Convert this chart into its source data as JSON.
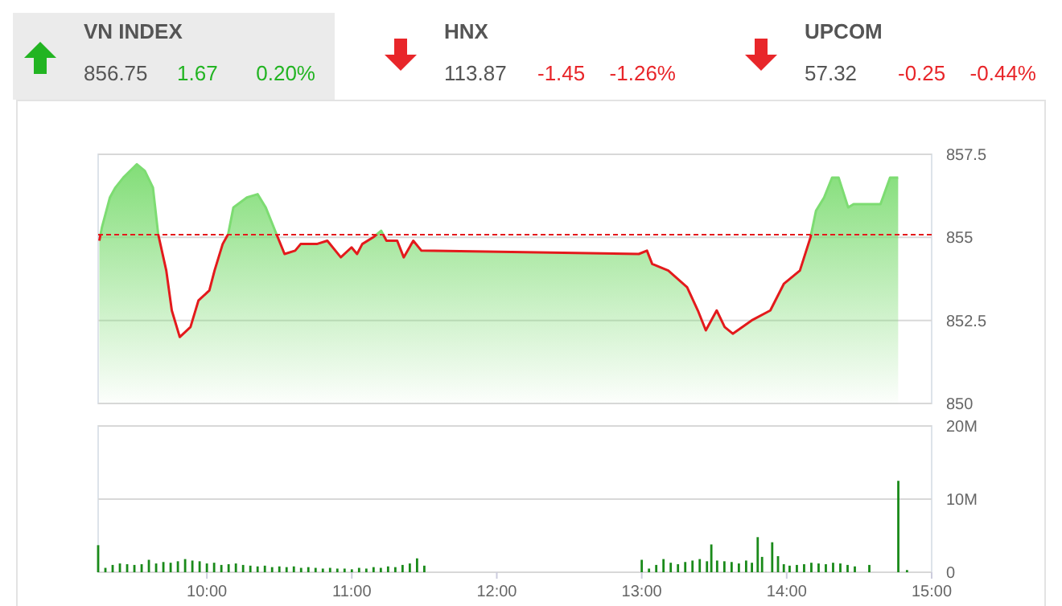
{
  "chart_data": [
    {
      "type": "other",
      "categories": [
        "VN INDEX",
        "HNX",
        "UPCOM"
      ],
      "colors": [
        "#22b422",
        "#e8262a",
        "#e8262a"
      ],
      "annotations": [
        "856.75",
        "0.20%",
        "113.87",
        "-1.26%",
        "57.32",
        "-0.44%"
      ],
      "series": [
        {
          "values": [
            1.67,
            -1.45,
            -0.25
          ],
          "value_labels": [
            "1.67",
            "-1.45",
            "-0.25"
          ]
        }
      ]
    },
    {
      "type": "area",
      "xlim": [
        9.25,
        15
      ],
      "ylim": [
        850,
        857.5
      ],
      "yticks": [
        850,
        852.5,
        855,
        857.5
      ],
      "tick_labels": "y",
      "grid": "y",
      "ref_lines": [
        {
          "axis": "y",
          "value": 855.08,
          "color": "#e31a1c",
          "line_style": "dashed"
        }
      ],
      "series": [
        {
          "color": "#7ddc72",
          "x": [
            9.258,
            9.276,
            9.331,
            9.369,
            9.424,
            9.517,
            9.572,
            9.628,
            9.664,
            9.72,
            9.758,
            9.813,
            9.887,
            9.942,
            10.017,
            10.053,
            10.109,
            10.147,
            10.183,
            10.276,
            10.35,
            10.406,
            10.48,
            10.536,
            10.609,
            10.647,
            10.758,
            10.831,
            10.924,
            10.998,
            11.036,
            11.072,
            11.147,
            11.202,
            11.239,
            11.313,
            11.358,
            11.424,
            11.48,
            12.98,
            13.036,
            13.072,
            13.183,
            13.313,
            13.387,
            13.442,
            13.517,
            13.572,
            13.628,
            13.758,
            13.887,
            13.98,
            14.091,
            14.164,
            14.202,
            14.258,
            14.313,
            14.358,
            14.424,
            14.461,
            14.647,
            14.713,
            14.769
          ],
          "values": [
            854.9,
            855.3,
            856.2,
            856.5,
            856.8,
            857.2,
            857.0,
            856.5,
            855.1,
            854.0,
            852.8,
            852.0,
            852.3,
            853.1,
            853.4,
            854.0,
            854.8,
            855.1,
            855.9,
            856.2,
            856.3,
            855.9,
            855.1,
            854.5,
            854.6,
            854.8,
            854.8,
            854.9,
            854.4,
            854.7,
            854.5,
            854.8,
            855.0,
            855.2,
            854.9,
            854.9,
            854.4,
            854.9,
            854.6,
            854.5,
            854.6,
            854.2,
            854.0,
            853.5,
            852.8,
            852.2,
            852.8,
            852.3,
            852.1,
            852.5,
            852.8,
            853.6,
            854.0,
            855.0,
            855.8,
            856.2,
            856.8,
            856.8,
            855.9,
            856.0,
            856.0,
            856.8,
            856.8
          ]
        }
      ]
    },
    {
      "type": "bar",
      "xlim": [
        9.25,
        15
      ],
      "xticks": [
        {
          "value": 10,
          "label": "10:00"
        },
        {
          "value": 11,
          "label": "11:00"
        },
        {
          "value": 12,
          "label": "12:00"
        },
        {
          "value": 13,
          "label": "13:00"
        },
        {
          "value": 14,
          "label": "14:00"
        },
        {
          "value": 15,
          "label": "15:00"
        }
      ],
      "ylim": [
        0,
        20
      ],
      "yticks": [
        0,
        {
          "value": 10,
          "label": "10M"
        },
        {
          "value": 20,
          "label": "20M"
        }
      ],
      "grid": "y",
      "series": [
        {
          "color": "#1a8a1a",
          "x": [
            9.25,
            9.3,
            9.35,
            9.4,
            9.45,
            9.5,
            9.55,
            9.6,
            9.65,
            9.7,
            9.75,
            9.8,
            9.85,
            9.9,
            9.95,
            10.0,
            10.05,
            10.1,
            10.15,
            10.2,
            10.25,
            10.3,
            10.35,
            10.4,
            10.45,
            10.5,
            10.55,
            10.6,
            10.65,
            10.7,
            10.75,
            10.8,
            10.85,
            10.9,
            10.95,
            11.0,
            11.05,
            11.1,
            11.15,
            11.2,
            11.25,
            11.3,
            11.35,
            11.4,
            11.45,
            11.5,
            13.0,
            13.05,
            13.1,
            13.15,
            13.2,
            13.25,
            13.3,
            13.35,
            13.4,
            13.45,
            13.48,
            13.52,
            13.57,
            13.62,
            13.67,
            13.72,
            13.76,
            13.8,
            13.83,
            13.9,
            13.94,
            13.98,
            14.02,
            14.07,
            14.12,
            14.17,
            14.22,
            14.27,
            14.32,
            14.37,
            14.42,
            14.47,
            14.57,
            14.77,
            14.83
          ],
          "values": [
            3.7,
            0.6,
            1.0,
            1.2,
            1.1,
            1.0,
            1.1,
            1.7,
            1.2,
            1.4,
            1.3,
            1.5,
            1.8,
            1.6,
            1.5,
            1.2,
            1.3,
            1.0,
            1.1,
            1.2,
            1.0,
            0.9,
            0.8,
            0.9,
            0.7,
            0.8,
            0.7,
            0.8,
            0.6,
            0.7,
            0.6,
            0.5,
            0.6,
            0.5,
            0.5,
            0.4,
            0.6,
            0.5,
            0.7,
            0.6,
            0.8,
            0.7,
            1.0,
            1.2,
            1.9,
            0.9,
            1.7,
            0.5,
            1.0,
            1.8,
            1.3,
            1.1,
            1.4,
            1.6,
            1.8,
            1.5,
            3.8,
            1.6,
            1.5,
            1.4,
            1.2,
            1.6,
            1.3,
            4.8,
            2.1,
            4.1,
            2.2,
            1.1,
            0.9,
            1.0,
            1.1,
            1.3,
            1.2,
            1.1,
            1.3,
            1.2,
            1.0,
            0.8,
            1.0,
            12.5,
            0.3
          ]
        }
      ]
    }
  ]
}
